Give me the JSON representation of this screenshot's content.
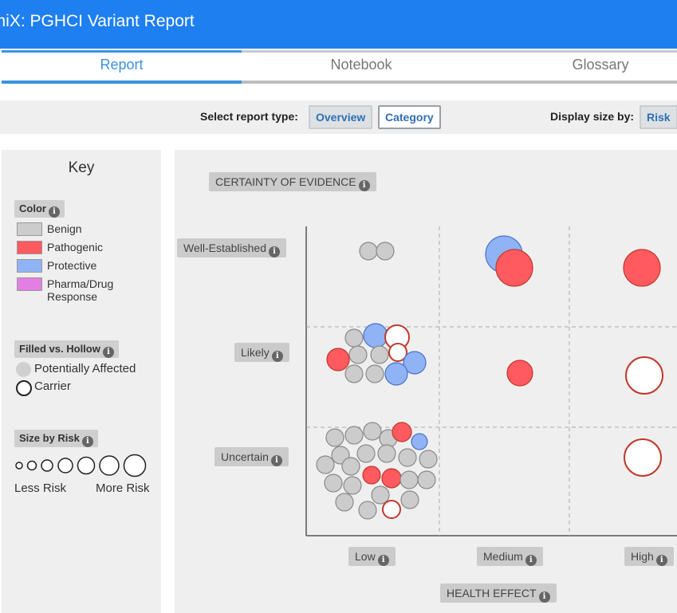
{
  "app": {
    "title": "omiX: PGHCI Variant Report"
  },
  "tabs": [
    {
      "label": "Report",
      "active": true
    },
    {
      "label": "Notebook",
      "active": false
    },
    {
      "label": "Glossary",
      "active": false
    }
  ],
  "controls": {
    "report_type_label": "Select report type:",
    "report_types": [
      {
        "label": "Overview",
        "selected": false
      },
      {
        "label": "Category",
        "selected": true
      }
    ],
    "display_size_label": "Display size by:",
    "display_size_option": "Risk"
  },
  "key": {
    "title": "Key",
    "color_heading": "Color",
    "colors": [
      {
        "label": "Benign",
        "color": "#cccccc"
      },
      {
        "label": "Pathogenic",
        "color": "#ff5a5f"
      },
      {
        "label": "Protective",
        "color": "#8fb3f5"
      },
      {
        "label": "Pharma/Drug",
        "label2": "Response",
        "color": "#e37ee3"
      }
    ],
    "fill_heading": "Filled vs. Hollow",
    "filled_label": "Potentially Affected",
    "hollow_label": "Carrier",
    "size_heading": "Size by Risk",
    "less_risk": "Less Risk",
    "more_risk": "More Risk"
  },
  "plot": {
    "y_axis_title": "CERTAINTY OF EVIDENCE",
    "y_levels": [
      "Well-Established",
      "Likely",
      "Uncertain"
    ],
    "x_levels": [
      "Low",
      "Medium",
      "High"
    ],
    "x_axis_title": "HEALTH EFFECT",
    "info_glyph": "i",
    "colors": {
      "benign": "#cccccc",
      "pathogenic": "#ff5a5f",
      "protective": "#8fb3f5",
      "hollow_stroke": "#c0392b",
      "benign_stroke": "#8a8a8a"
    }
  }
}
